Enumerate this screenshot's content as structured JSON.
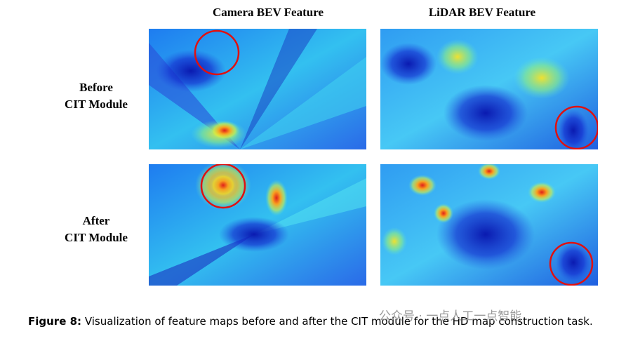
{
  "columns": [
    "Camera BEV Feature",
    "LiDAR BEV Feature"
  ],
  "rows": [
    {
      "label_lines": [
        "Before",
        "CIT Module"
      ]
    },
    {
      "label_lines": [
        "After",
        "CIT Module"
      ]
    }
  ],
  "caption": {
    "label": "Figure 8:",
    "text": "Visualization of feature maps before and after the CIT module for the HD map construction task."
  },
  "watermark": "公众号 · 一点人工一点智能"
}
